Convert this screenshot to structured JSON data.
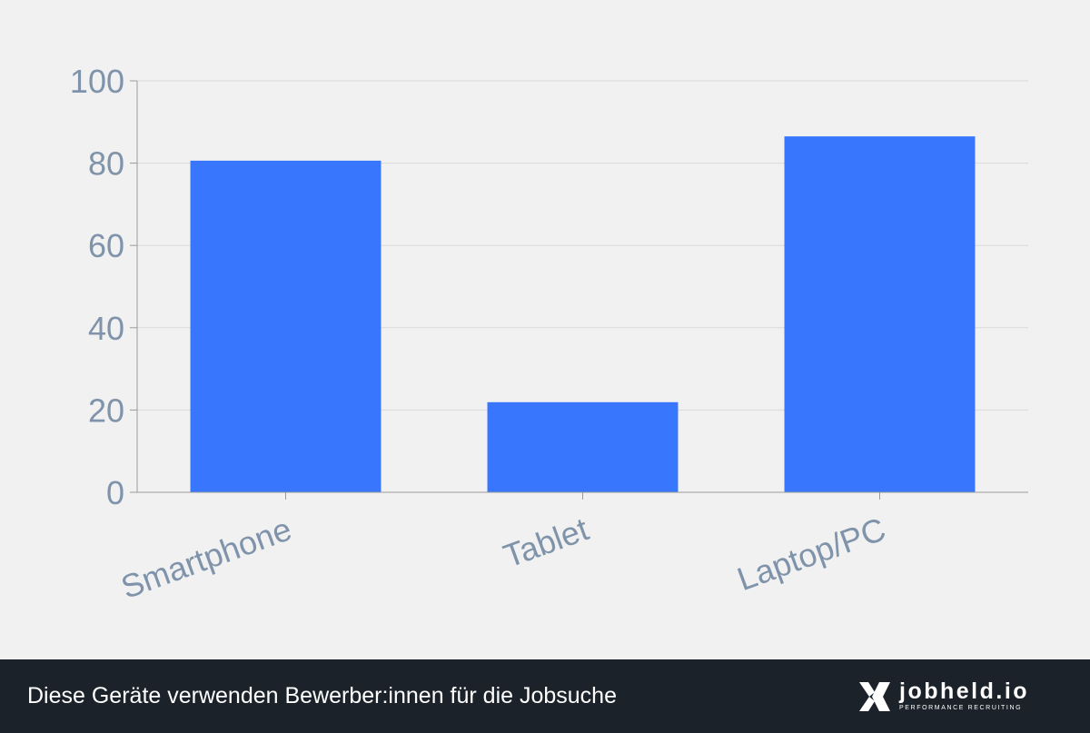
{
  "chart_data": {
    "type": "bar",
    "title": "",
    "xlabel": "",
    "ylabel": "",
    "categories": [
      "Smartphone",
      "Tablet",
      "Laptop/PC"
    ],
    "values": [
      80.6,
      21.9,
      86.5
    ],
    "ylim": [
      0,
      100
    ],
    "yticks": [
      0,
      20,
      40,
      60,
      80,
      100
    ],
    "grid": true,
    "legend": "none",
    "colors": {
      "bar": "#3776fd",
      "tick_text": "#7f93aa",
      "grid": "#d9d9d9",
      "axis": "#9a9a9a",
      "background": "#f1f1f1"
    }
  },
  "footer": {
    "caption": "Diese Geräte verwenden Bewerber:innen für die Jobsuche",
    "brand_name": "jobheld.io",
    "brand_tagline": "PERFORMANCE RECRUITING",
    "brand_icon": "jobheld-logo-icon",
    "background": "#1b2229"
  }
}
